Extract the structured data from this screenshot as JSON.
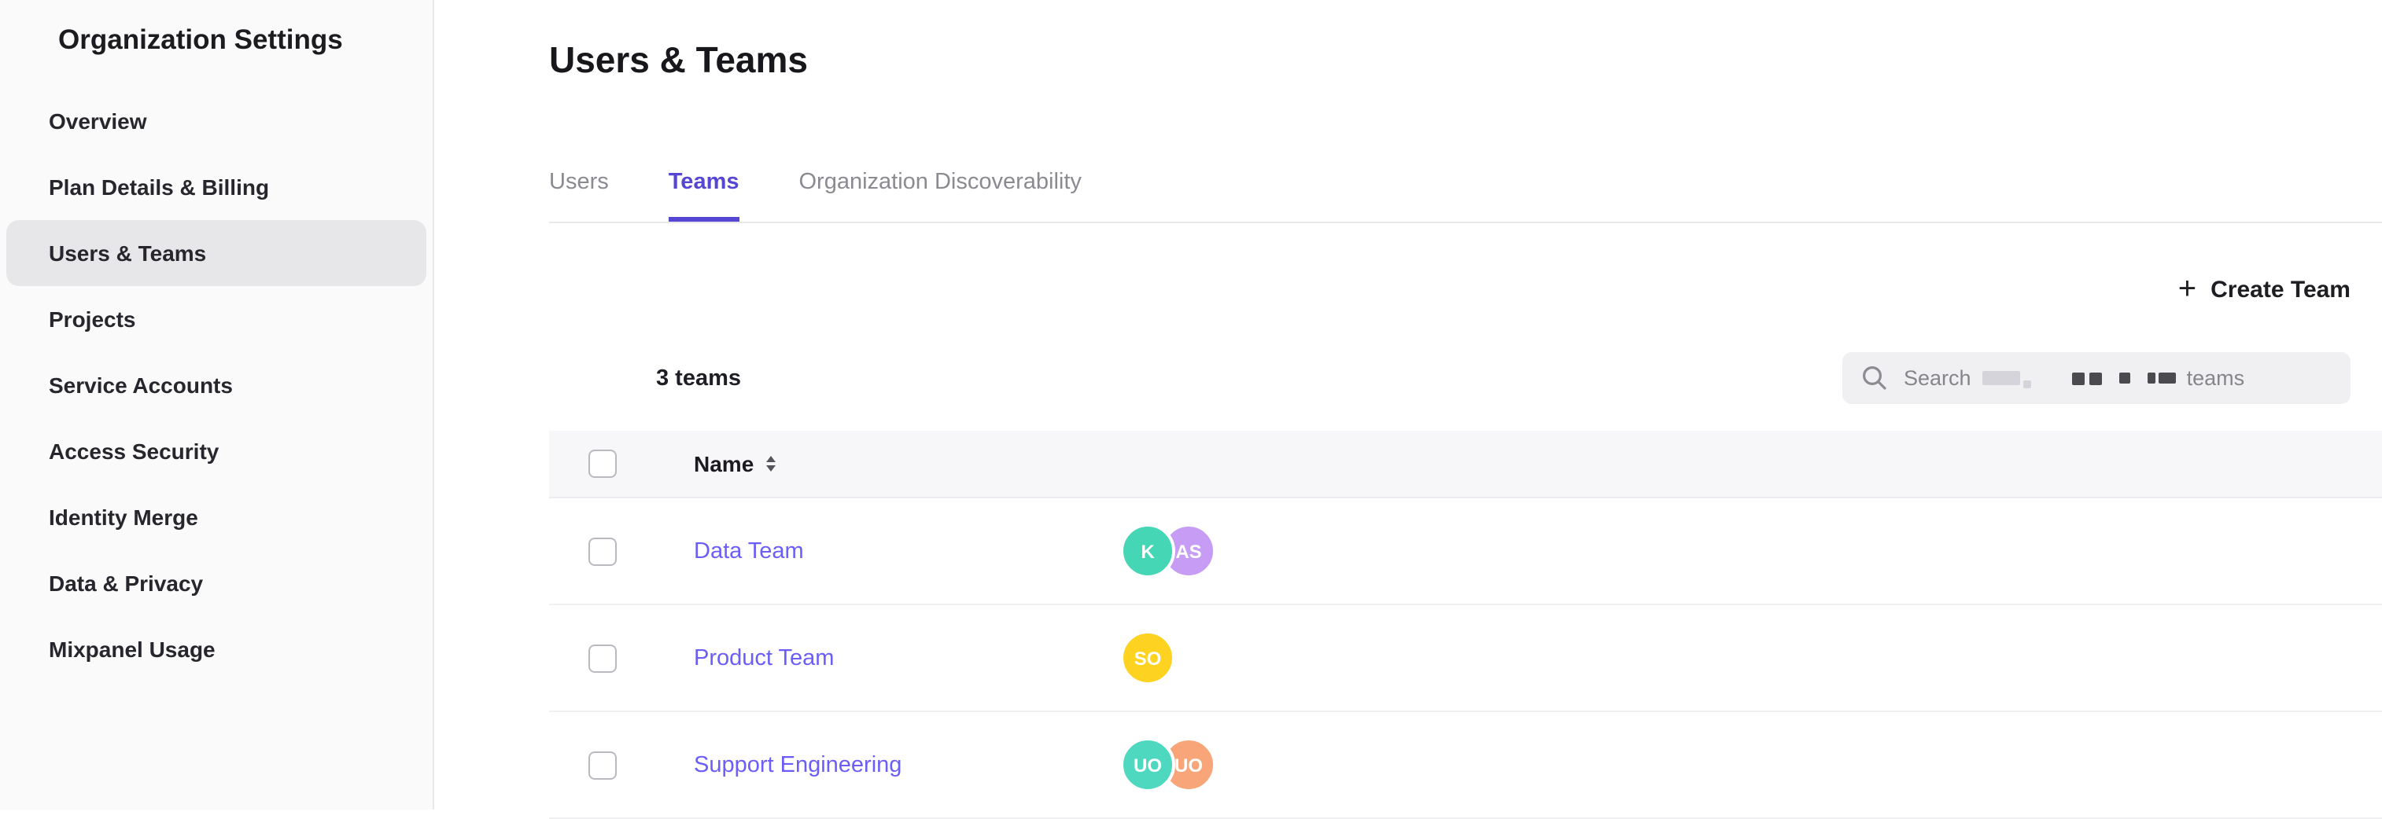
{
  "sidebar": {
    "title": "Organization Settings",
    "items": [
      {
        "label": "Overview",
        "selected": false
      },
      {
        "label": "Plan Details & Billing",
        "selected": false
      },
      {
        "label": "Users & Teams",
        "selected": true
      },
      {
        "label": "Projects",
        "selected": false
      },
      {
        "label": "Service Accounts",
        "selected": false
      },
      {
        "label": "Access Security",
        "selected": false
      },
      {
        "label": "Identity Merge",
        "selected": false
      },
      {
        "label": "Data & Privacy",
        "selected": false
      },
      {
        "label": "Mixpanel Usage",
        "selected": false
      }
    ]
  },
  "page": {
    "title": "Users & Teams"
  },
  "tabs": [
    {
      "label": "Users",
      "selected": false
    },
    {
      "label": "Teams",
      "selected": true
    },
    {
      "label": "Organization Discoverability",
      "selected": false
    }
  ],
  "toolbar": {
    "plus_glyph": "+",
    "create_team_label": "Create Team"
  },
  "teams": {
    "count_label": "3 teams",
    "search": {
      "prefix": "Search",
      "suffix": "teams",
      "middle_redacted": true
    },
    "table": {
      "name_header": "Name",
      "rows": [
        {
          "name": "Data Team",
          "avatars": [
            {
              "initials": "K",
              "color": "#45d6b5"
            },
            {
              "initials": "AS",
              "color": "#c69cf4"
            }
          ]
        },
        {
          "name": "Product Team",
          "avatars": [
            {
              "initials": "SO",
              "color": "#fdd220"
            }
          ]
        },
        {
          "name": "Support Engineering",
          "avatars": [
            {
              "initials": "UO",
              "color": "#4fd8c0"
            },
            {
              "initials": "UO",
              "color": "#f8a679"
            }
          ]
        }
      ]
    }
  },
  "icons": {
    "search": "magnifier",
    "sort": "up-down-carets",
    "create": "plus"
  },
  "colors": {
    "accent_purple": "#5646d4",
    "link_purple": "#6b5ef8",
    "sidebar_bg": "#fafafa",
    "selected_nav_bg": "#e7e7ea",
    "table_header_bg": "#f7f7f9",
    "avatar_mint": "#45d6b5",
    "avatar_lavender": "#c69cf4",
    "avatar_yellow": "#fdd220",
    "avatar_teal": "#4fd8c0",
    "avatar_salmon": "#f8a679"
  }
}
